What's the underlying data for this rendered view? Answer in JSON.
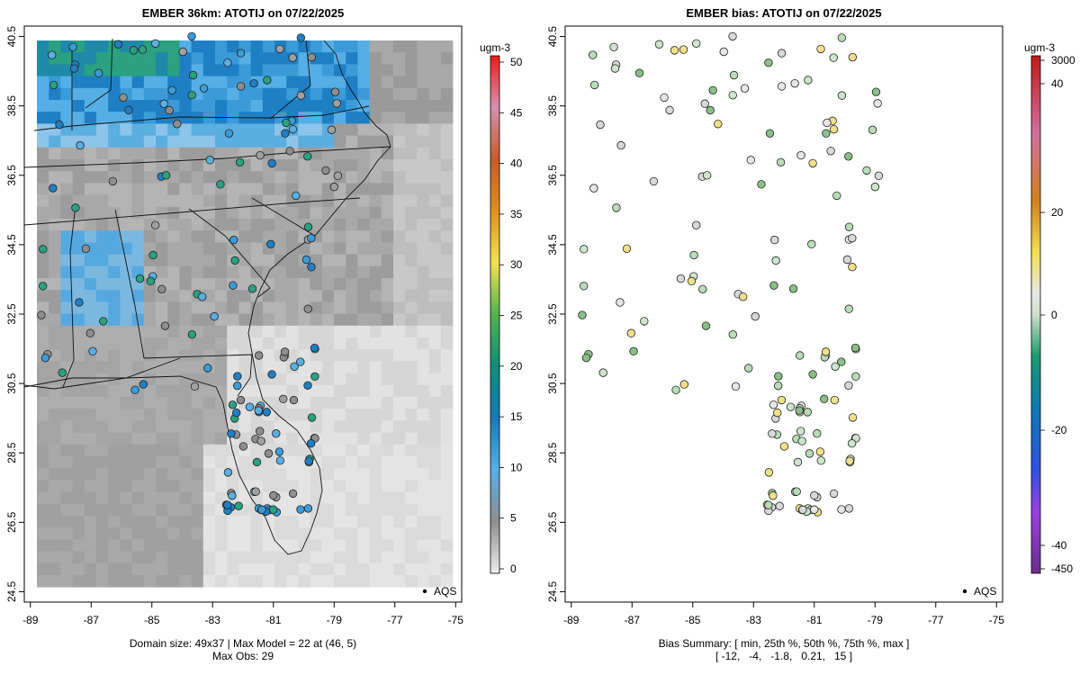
{
  "chart_data": [
    {
      "type": "heatmap",
      "title": "EMBER 36km: ATOTIJ on 07/22/2025",
      "xlabel": "",
      "ylabel": "",
      "xlim": [
        -89.2,
        -74.8
      ],
      "ylim": [
        24.2,
        40.8
      ],
      "x_ticks": [
        "-89",
        "-87",
        "-85",
        "-83",
        "-81",
        "-79",
        "-77",
        "-75"
      ],
      "y_ticks": [
        "24.5",
        "26.5",
        "28.5",
        "30.5",
        "32.5",
        "34.5",
        "36.5",
        "38.5",
        "40.5"
      ],
      "colorbar_unit": "ugm-3",
      "colorbar_ticks": [
        "0",
        "5",
        "10",
        "15",
        "20",
        "25",
        "30",
        "35",
        "40",
        "45",
        "50"
      ],
      "legend": "AQS",
      "footer": [
        "Domain size: 49x37 | Max Model = 22 at (46, 5)",
        "Max Obs: 29"
      ]
    },
    {
      "type": "scatter",
      "title": "EMBER bias: ATOTIJ on 07/22/2025",
      "xlabel": "",
      "ylabel": "",
      "xlim": [
        -89.2,
        -74.8
      ],
      "ylim": [
        24.2,
        40.8
      ],
      "x_ticks": [
        "-89",
        "-87",
        "-85",
        "-83",
        "-81",
        "-79",
        "-77",
        "-75"
      ],
      "y_ticks": [
        "24.5",
        "26.5",
        "28.5",
        "30.5",
        "32.5",
        "34.5",
        "36.5",
        "38.5",
        "40.5"
      ],
      "colorbar_unit": "ugm-3",
      "colorbar_ticks": [
        "3000",
        "40",
        "20",
        "0",
        "-20",
        "-40",
        "-450"
      ],
      "legend": "AQS",
      "bias_summary": {
        "min": -12,
        "p25": -4,
        "p50": -1.8,
        "p75": 0.21,
        "max": 15
      },
      "footer": [
        "Bias Summary: [ min, 25th %, 50th %, 75th %, max ]",
        "[ -12,   -4,   -1.8,   0.21,   15 ]"
      ]
    }
  ]
}
